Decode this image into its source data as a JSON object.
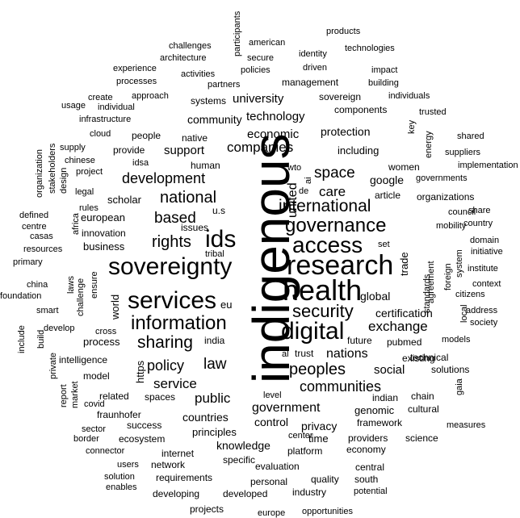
{
  "word_cloud": {
    "text_color": "#000000",
    "background": "#ffffff",
    "words": [
      {
        "text": "indigenous",
        "weight": 64,
        "vertical": true
      },
      {
        "text": "health",
        "weight": 36
      },
      {
        "text": "research",
        "weight": 34
      },
      {
        "text": "sovereignty",
        "weight": 30
      },
      {
        "text": "ids",
        "weight": 30
      },
      {
        "text": "services",
        "weight": 30
      },
      {
        "text": "digital",
        "weight": 30
      },
      {
        "text": "access",
        "weight": 28
      },
      {
        "text": "governance",
        "weight": 24
      },
      {
        "text": "information",
        "weight": 24
      },
      {
        "text": "security",
        "weight": 22
      },
      {
        "text": "international",
        "weight": 21
      },
      {
        "text": "sharing",
        "weight": 21
      },
      {
        "text": "rights",
        "weight": 20
      },
      {
        "text": "national",
        "weight": 20
      },
      {
        "text": "peoples",
        "weight": 20
      },
      {
        "text": "based",
        "weight": 19
      },
      {
        "text": "space",
        "weight": 19
      },
      {
        "text": "law",
        "weight": 19
      },
      {
        "text": "development",
        "weight": 18
      },
      {
        "text": "policy",
        "weight": 18
      },
      {
        "text": "communities",
        "weight": 18
      },
      {
        "text": "public",
        "weight": 17
      },
      {
        "text": "service",
        "weight": 17
      },
      {
        "text": "companies",
        "weight": 17
      },
      {
        "text": "care",
        "weight": 17
      },
      {
        "text": "exchange",
        "weight": 17
      },
      {
        "text": "nations",
        "weight": 16
      },
      {
        "text": "united",
        "weight": 16,
        "vertical": true
      },
      {
        "text": "government",
        "weight": 16
      },
      {
        "text": "technology",
        "weight": 15
      },
      {
        "text": "support",
        "weight": 15
      },
      {
        "text": "economic",
        "weight": 15
      },
      {
        "text": "university",
        "weight": 15
      },
      {
        "text": "social",
        "weight": 15
      },
      {
        "text": "global",
        "weight": 14
      },
      {
        "text": "protection",
        "weight": 14
      },
      {
        "text": "community",
        "weight": 14
      },
      {
        "text": "countries",
        "weight": 14
      },
      {
        "text": "certification",
        "weight": 14
      },
      {
        "text": "control",
        "weight": 14
      },
      {
        "text": "privacy",
        "weight": 14
      },
      {
        "text": "knowledge",
        "weight": 14
      },
      {
        "text": "google",
        "weight": 14
      },
      {
        "text": "business",
        "weight": 13
      },
      {
        "text": "world",
        "weight": 13,
        "vertical": true
      },
      {
        "text": "european",
        "weight": 13
      },
      {
        "text": "including",
        "weight": 13
      },
      {
        "text": "trade",
        "weight": 13,
        "vertical": true
      },
      {
        "text": "scholar",
        "weight": 13
      },
      {
        "text": "process",
        "weight": 13
      },
      {
        "text": "principles",
        "weight": 13
      },
      {
        "text": "https",
        "weight": 13,
        "vertical": true
      },
      {
        "text": "eu",
        "weight": 13
      },
      {
        "text": "time",
        "weight": 13
      },
      {
        "text": "genomic",
        "weight": 13
      },
      {
        "text": "innovation",
        "weight": 12
      },
      {
        "text": "intelligence",
        "weight": 12
      },
      {
        "text": "related",
        "weight": 12
      },
      {
        "text": "spaces",
        "weight": 12
      },
      {
        "text": "success",
        "weight": 12
      },
      {
        "text": "platform",
        "weight": 12
      },
      {
        "text": "framework",
        "weight": 12
      },
      {
        "text": "existing",
        "weight": 12
      },
      {
        "text": "systems",
        "weight": 12
      },
      {
        "text": "management",
        "weight": 12
      },
      {
        "text": "sovereign",
        "weight": 12
      },
      {
        "text": "components",
        "weight": 12
      },
      {
        "text": "provide",
        "weight": 12
      },
      {
        "text": "people",
        "weight": 12
      },
      {
        "text": "native",
        "weight": 12
      },
      {
        "text": "human",
        "weight": 12
      },
      {
        "text": "issues",
        "weight": 12
      },
      {
        "text": "u.s",
        "weight": 12
      },
      {
        "text": "india",
        "weight": 12
      },
      {
        "text": "trust",
        "weight": 12
      },
      {
        "text": "article",
        "weight": 12
      },
      {
        "text": "women",
        "weight": 12
      },
      {
        "text": "organizations",
        "weight": 12
      },
      {
        "text": "technical",
        "weight": 12
      },
      {
        "text": "pubmed",
        "weight": 12
      },
      {
        "text": "future",
        "weight": 12
      },
      {
        "text": "indian",
        "weight": 12
      },
      {
        "text": "chain",
        "weight": 12
      },
      {
        "text": "cultural",
        "weight": 12
      },
      {
        "text": "solutions",
        "weight": 12
      },
      {
        "text": "model",
        "weight": 12
      },
      {
        "text": "fraunhofer",
        "weight": 12
      },
      {
        "text": "ecosystem",
        "weight": 12
      },
      {
        "text": "internet",
        "weight": 12
      },
      {
        "text": "network",
        "weight": 12
      },
      {
        "text": "requirements",
        "weight": 12
      },
      {
        "text": "specific",
        "weight": 12
      },
      {
        "text": "evaluation",
        "weight": 12
      },
      {
        "text": "personal",
        "weight": 12
      },
      {
        "text": "quality",
        "weight": 12
      },
      {
        "text": "industry",
        "weight": 12
      },
      {
        "text": "developed",
        "weight": 12
      },
      {
        "text": "developing",
        "weight": 12
      },
      {
        "text": "providers",
        "weight": 12
      },
      {
        "text": "science",
        "weight": 12
      },
      {
        "text": "economy",
        "weight": 12
      },
      {
        "text": "central",
        "weight": 12
      },
      {
        "text": "south",
        "weight": 12
      },
      {
        "text": "potential",
        "weight": 11
      },
      {
        "text": "opportunities",
        "weight": 11
      },
      {
        "text": "europe",
        "weight": 11
      },
      {
        "text": "projects",
        "weight": 12
      },
      {
        "text": "solution",
        "weight": 11
      },
      {
        "text": "enables",
        "weight": 11
      },
      {
        "text": "users",
        "weight": 11
      },
      {
        "text": "connector",
        "weight": 11
      },
      {
        "text": "sector",
        "weight": 11
      },
      {
        "text": "border",
        "weight": 11
      },
      {
        "text": "covid",
        "weight": 11
      },
      {
        "text": "market",
        "weight": 11,
        "vertical": true
      },
      {
        "text": "report",
        "weight": 11,
        "vertical": true
      },
      {
        "text": "private",
        "weight": 11,
        "vertical": true
      },
      {
        "text": "build",
        "weight": 11,
        "vertical": true
      },
      {
        "text": "include",
        "weight": 11,
        "vertical": true
      },
      {
        "text": "develop",
        "weight": 11
      },
      {
        "text": "smart",
        "weight": 11
      },
      {
        "text": "china",
        "weight": 11
      },
      {
        "text": "foundation",
        "weight": 11
      },
      {
        "text": "primary",
        "weight": 11
      },
      {
        "text": "resources",
        "weight": 11
      },
      {
        "text": "casas",
        "weight": 11
      },
      {
        "text": "centre",
        "weight": 11
      },
      {
        "text": "defined",
        "weight": 11
      },
      {
        "text": "rules",
        "weight": 11
      },
      {
        "text": "africa",
        "weight": 11,
        "vertical": true
      },
      {
        "text": "legal",
        "weight": 11
      },
      {
        "text": "project",
        "weight": 11
      },
      {
        "text": "chinese",
        "weight": 11
      },
      {
        "text": "supply",
        "weight": 11
      },
      {
        "text": "organization",
        "weight": 11,
        "vertical": true
      },
      {
        "text": "stakeholders",
        "weight": 11,
        "vertical": true
      },
      {
        "text": "design",
        "weight": 11,
        "vertical": true
      },
      {
        "text": "cloud",
        "weight": 11
      },
      {
        "text": "infrastructure",
        "weight": 11
      },
      {
        "text": "usage",
        "weight": 11
      },
      {
        "text": "individual",
        "weight": 11
      },
      {
        "text": "create",
        "weight": 11
      },
      {
        "text": "approach",
        "weight": 11
      },
      {
        "text": "processes",
        "weight": 11
      },
      {
        "text": "experience",
        "weight": 11
      },
      {
        "text": "architecture",
        "weight": 11
      },
      {
        "text": "challenges",
        "weight": 11
      },
      {
        "text": "activities",
        "weight": 11
      },
      {
        "text": "partners",
        "weight": 11
      },
      {
        "text": "secure",
        "weight": 11
      },
      {
        "text": "american",
        "weight": 11
      },
      {
        "text": "policies",
        "weight": 11
      },
      {
        "text": "participants",
        "weight": 11,
        "vertical": true
      },
      {
        "text": "identity",
        "weight": 11
      },
      {
        "text": "driven",
        "weight": 11
      },
      {
        "text": "ai",
        "weight": 11,
        "vertical": true
      },
      {
        "text": "products",
        "weight": 11
      },
      {
        "text": "technologies",
        "weight": 11
      },
      {
        "text": "impact",
        "weight": 11
      },
      {
        "text": "building",
        "weight": 11
      },
      {
        "text": "individuals",
        "weight": 11
      },
      {
        "text": "trusted",
        "weight": 11
      },
      {
        "text": "key",
        "weight": 11,
        "vertical": true
      },
      {
        "text": "energy",
        "weight": 11,
        "vertical": true
      },
      {
        "text": "shared",
        "weight": 11
      },
      {
        "text": "suppliers",
        "weight": 11
      },
      {
        "text": "implementation",
        "weight": 11
      },
      {
        "text": "governments",
        "weight": 11
      },
      {
        "text": "share",
        "weight": 11
      },
      {
        "text": "council",
        "weight": 11
      },
      {
        "text": "country",
        "weight": 11
      },
      {
        "text": "mobility",
        "weight": 11
      },
      {
        "text": "domain",
        "weight": 11
      },
      {
        "text": "initiative",
        "weight": 11
      },
      {
        "text": "institute",
        "weight": 11
      },
      {
        "text": "context",
        "weight": 11
      },
      {
        "text": "citizens",
        "weight": 11
      },
      {
        "text": "address",
        "weight": 11
      },
      {
        "text": "society",
        "weight": 11
      },
      {
        "text": "models",
        "weight": 11
      },
      {
        "text": "gaia",
        "weight": 11,
        "vertical": true
      },
      {
        "text": "measures",
        "weight": 11
      },
      {
        "text": "center",
        "weight": 11
      },
      {
        "text": "wto",
        "weight": 11
      },
      {
        "text": "de",
        "weight": 11
      },
      {
        "text": "al",
        "weight": 11
      },
      {
        "text": "cross",
        "weight": 11
      },
      {
        "text": "ensure",
        "weight": 11,
        "vertical": true
      },
      {
        "text": "challenge",
        "weight": 11,
        "vertical": true
      },
      {
        "text": "laws",
        "weight": 11,
        "vertical": true
      },
      {
        "text": "tribal",
        "weight": 11
      },
      {
        "text": "idsa",
        "weight": 11
      },
      {
        "text": "set",
        "weight": 11
      },
      {
        "text": "standards",
        "weight": 11,
        "vertical": true
      },
      {
        "text": "agreement",
        "weight": 11,
        "vertical": true
      },
      {
        "text": "foreign",
        "weight": 11,
        "vertical": true
      },
      {
        "text": "system",
        "weight": 11,
        "vertical": true
      },
      {
        "text": "local",
        "weight": 11,
        "vertical": true
      },
      {
        "text": "level",
        "weight": 11
      }
    ]
  }
}
